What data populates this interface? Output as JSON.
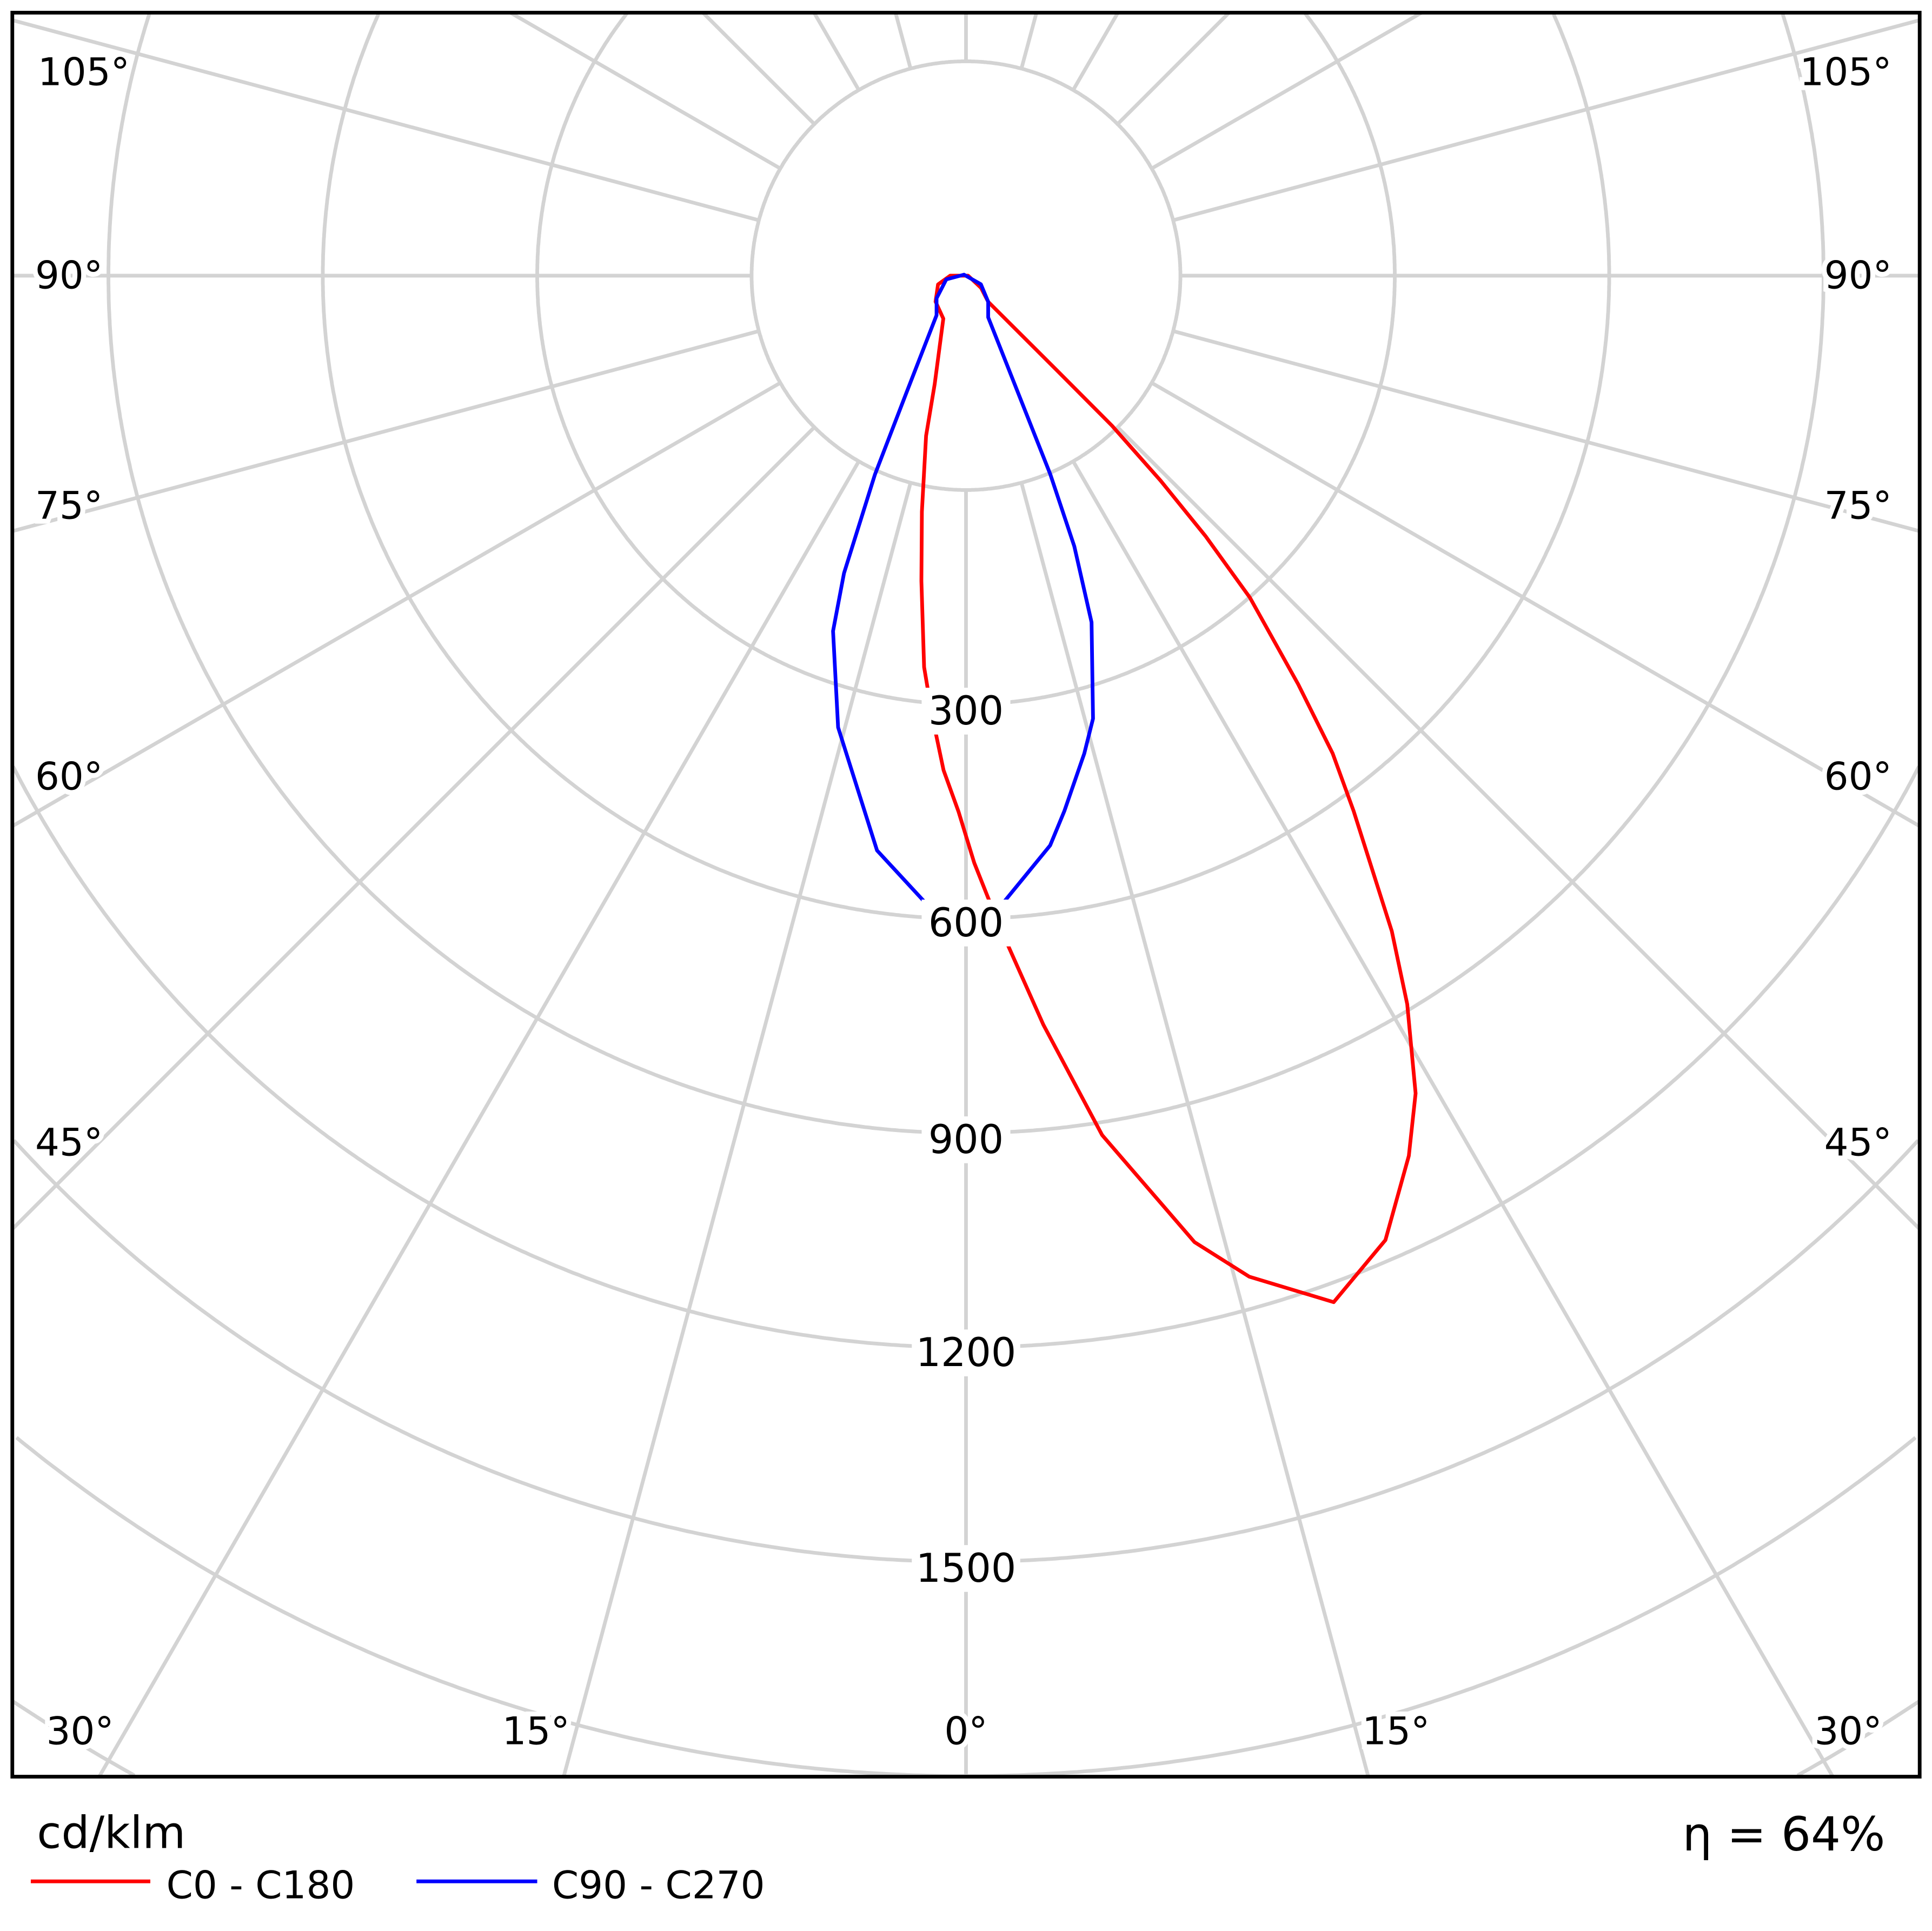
{
  "chart_data": {
    "type": "polar",
    "unit_label": "cd/klm",
    "efficiency_label": "η = 64%",
    "r_tick_labels": [
      "300",
      "600",
      "900",
      "1200",
      "1500"
    ],
    "r_ticks": [
      300,
      600,
      900,
      1200,
      1500
    ],
    "rlim": [
      -300,
      1800
    ],
    "angle_zero": "bottom",
    "angle_labels": {
      "bottom": [
        "30°",
        "15°",
        "0°",
        "15°",
        "30°"
      ],
      "left": [
        "45°",
        "60°",
        "75°",
        "90°",
        "105°"
      ],
      "right": [
        "45°",
        "60°",
        "75°",
        "90°",
        "105°"
      ]
    },
    "grid": true,
    "angle_grid_step_deg": 15,
    "legend_position": "bottom-left",
    "series": [
      {
        "name": "C0 - C180",
        "color": "#ff0000",
        "angle_deg": [
          -90,
          -72.6,
          -49.5,
          -27.8,
          -16.1,
          -14,
          -10.6,
          -8.3,
          -6.1,
          -4.3,
          -2.6,
          -0.8,
          0.8,
          2.9,
          5.9,
          9,
          13.3,
          15.8,
          19.7,
          23.5,
          26.7,
          28.8,
          31.2,
          33,
          35.9,
          37.5,
          39.1,
          41.4,
          42.6,
          43.5,
          44.2,
          43.8,
          40.3,
          51,
          90
        ],
        "values": [
          -278,
          -259,
          -244,
          -232,
          -142,
          -69,
          36,
          132,
          251,
          322,
          393,
          450,
          522,
          610,
          754,
          918,
          1090,
          1156,
          1226,
          1172,
          1079,
          1006,
          892,
          794,
          625,
          543,
          437,
          301,
          195,
          96,
          -7,
          -116,
          -252,
          -273,
          -297
        ]
      },
      {
        "name": "C90 - C270",
        "color": "#0000ff",
        "angle_deg": [
          40.3,
          28,
          23,
          21.8,
          19.9,
          16,
          13.9,
          10.4,
          8.4,
          3.3,
          0,
          -3.6,
          -8.8,
          -15.8,
          -20.5,
          -22.3,
          -24.6,
          -26.9,
          -36.7,
          -52.4,
          -79.5,
          -117,
          60
        ],
        "values": [
          -252,
          -234,
          2,
          108,
          216,
          345,
          389,
          462,
          506,
          581,
          594,
          581,
          514,
          357,
          231,
          150,
          6,
          -114,
          -231,
          -248,
          -272,
          -297,
          -276
        ]
      }
    ]
  }
}
